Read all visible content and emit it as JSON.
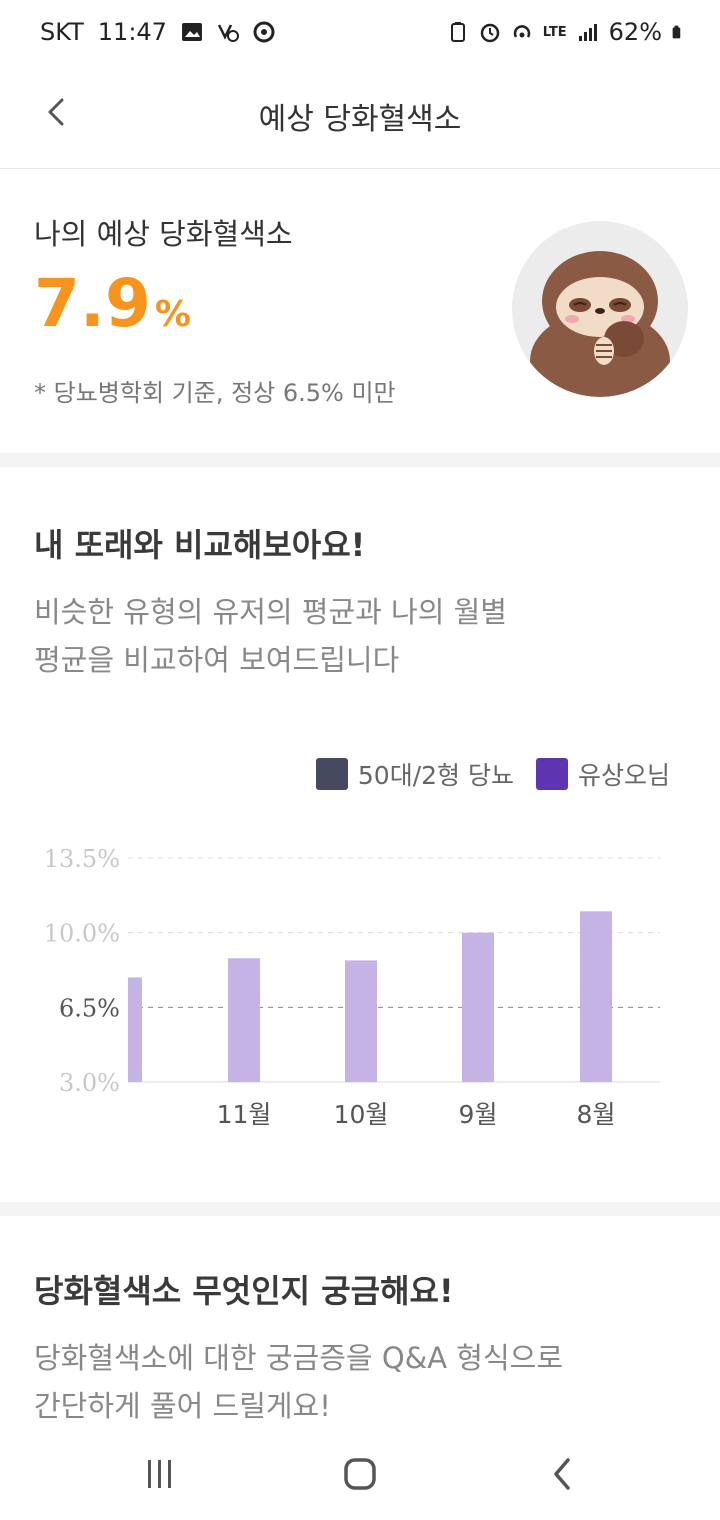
{
  "status": {
    "carrier": "SKT",
    "time": "11:47",
    "network": "LTE",
    "battery": "62%"
  },
  "header": {
    "title": "예상 당화혈색소"
  },
  "hba1c": {
    "label": "나의 예상 당화혈색소",
    "value": "7.9",
    "unit": "%",
    "note": "* 당뇨병학회 기준, 정상 6.5% 미만",
    "accent_color": "#F7941D"
  },
  "compare": {
    "title": "내 또래와 비교해보아요!",
    "desc_line1": "비슷한 유형의 유저의 평균과 나의 월별",
    "desc_line2": "평균을 비교하여 보여드립니다",
    "legend": [
      {
        "label": "50대/2형 당뇨",
        "color": "#464a5e"
      },
      {
        "label": "유상오님",
        "color": "#5e35b1"
      }
    ]
  },
  "chart_data": {
    "type": "bar",
    "categories": [
      "",
      "11월",
      "10월",
      "9월",
      "8월"
    ],
    "series": [
      {
        "name": "유상오님",
        "color": "#c5b3e6",
        "values": [
          7.9,
          8.8,
          8.7,
          10.0,
          11.0
        ]
      }
    ],
    "y_ticks": [
      "13.5%",
      "10.0%",
      "6.5%",
      "3.0%"
    ],
    "y_tick_values": [
      13.5,
      10.0,
      6.5,
      3.0
    ],
    "ylim": [
      3.0,
      13.5
    ],
    "reference_line": 6.5,
    "grid": "dashed"
  },
  "qa": {
    "title": "당화혈색소 무엇인지 궁금해요!",
    "desc_line1": "당화혈색소에 대한 궁금증을 Q&A 형식으로",
    "desc_line2": "간단하게 풀어 드릴게요!"
  },
  "icons": {
    "back": "chevron-left-icon",
    "avatar": "sloth-character",
    "nav_recents": "recents-icon",
    "nav_home": "home-icon",
    "nav_back": "nav-back-icon"
  }
}
